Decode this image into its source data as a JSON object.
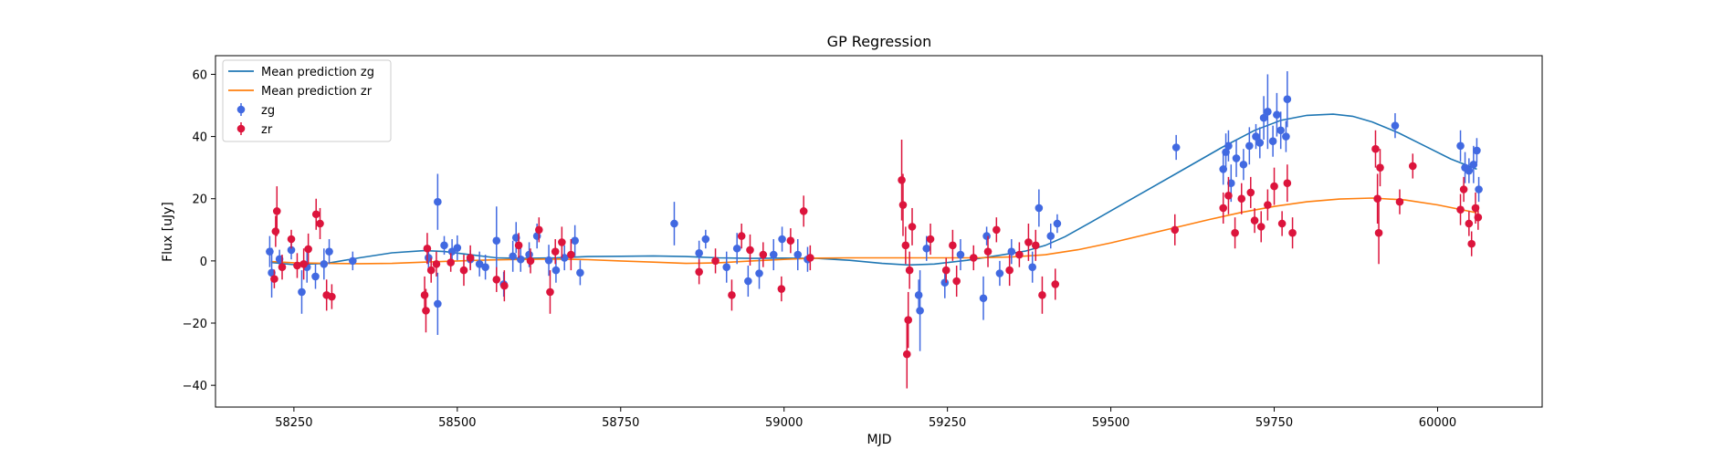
{
  "chart_data": {
    "type": "scatter",
    "title": "GP Regression",
    "xlabel": "MJD",
    "ylabel": "Flux [uJy]",
    "xlim": [
      58130,
      60160
    ],
    "ylim": [
      -47,
      66
    ],
    "xticks": [
      58250,
      58500,
      58750,
      59000,
      59250,
      59500,
      59750,
      60000
    ],
    "yticks": [
      -40,
      -20,
      0,
      20,
      40,
      60
    ],
    "grid": false,
    "legend_position": "top-left",
    "lines": [
      {
        "name": "Mean prediction zg",
        "color": "#1f77b4",
        "x": [
          58215,
          58250,
          58300,
          58350,
          58400,
          58450,
          58480,
          58520,
          58560,
          58600,
          58650,
          58700,
          58750,
          58800,
          58850,
          58900,
          58950,
          59000,
          59050,
          59100,
          59150,
          59190,
          59230,
          59280,
          59330,
          59370,
          59400,
          59430,
          59470,
          59520,
          59570,
          59620,
          59670,
          59720,
          59760,
          59800,
          59840,
          59870,
          59900,
          59940,
          59980,
          60020,
          60060
        ],
        "y": [
          -0.5,
          -1.2,
          -0.8,
          1.0,
          2.6,
          3.3,
          3.0,
          2.0,
          1.0,
          0.8,
          1.0,
          1.4,
          1.5,
          1.6,
          1.4,
          1.0,
          0.8,
          0.9,
          0.8,
          0.2,
          -0.8,
          -1.3,
          -1.0,
          0.2,
          1.8,
          3.2,
          5.0,
          7.8,
          12.5,
          18.5,
          24.5,
          30.5,
          36.5,
          42.0,
          45.2,
          46.8,
          47.2,
          46.5,
          44.7,
          41.2,
          37.0,
          32.8,
          29.5
        ]
      },
      {
        "name": "Mean prediction zr",
        "color": "#ff7f0e",
        "x": [
          58215,
          58250,
          58300,
          58350,
          58400,
          58450,
          58500,
          58550,
          58600,
          58650,
          58700,
          58750,
          58800,
          58850,
          58900,
          58950,
          59000,
          59050,
          59100,
          59150,
          59200,
          59250,
          59300,
          59350,
          59400,
          59450,
          59500,
          59550,
          59600,
          59650,
          59700,
          59750,
          59800,
          59850,
          59900,
          59950,
          60000,
          60060
        ],
        "y": [
          -0.2,
          -0.6,
          -0.8,
          -0.9,
          -0.8,
          -0.4,
          0.0,
          0.3,
          0.5,
          0.6,
          0.4,
          0.0,
          -0.4,
          -0.8,
          -0.6,
          0.0,
          0.5,
          0.9,
          1.0,
          1.0,
          1.0,
          1.0,
          1.0,
          1.3,
          2.0,
          3.6,
          5.8,
          8.3,
          10.8,
          13.3,
          15.6,
          17.5,
          19.0,
          19.9,
          20.2,
          19.6,
          18.0,
          15.5
        ]
      }
    ],
    "series": [
      {
        "name": "zg",
        "color": "#4169e1",
        "points": [
          [
            58213,
            3.0,
            5
          ],
          [
            58216,
            -3.8,
            8
          ],
          [
            58228,
            0.6,
            3
          ],
          [
            58246,
            3.5,
            3
          ],
          [
            58262,
            -10.0,
            7
          ],
          [
            58270,
            -2.0,
            5
          ],
          [
            58283,
            -5.0,
            4
          ],
          [
            58296,
            -1.0,
            5
          ],
          [
            58304,
            3.0,
            4
          ],
          [
            58340,
            0.0,
            3
          ],
          [
            58456,
            1.0,
            4
          ],
          [
            58470,
            19.0,
            9
          ],
          [
            58470,
            -13.8,
            10
          ],
          [
            58480,
            5.0,
            3
          ],
          [
            58492,
            3.0,
            4
          ],
          [
            58500,
            4.2,
            4
          ],
          [
            58520,
            0.5,
            3
          ],
          [
            58534,
            -1.0,
            4
          ],
          [
            58543,
            -2.0,
            4
          ],
          [
            58560,
            6.5,
            11
          ],
          [
            58571,
            -7.5,
            4
          ],
          [
            58585,
            1.5,
            5
          ],
          [
            58590,
            7.5,
            5
          ],
          [
            58597,
            0.5,
            4
          ],
          [
            58610,
            2.0,
            4
          ],
          [
            58622,
            8.0,
            4
          ],
          [
            58640,
            0.2,
            5
          ],
          [
            58651,
            -3.0,
            4
          ],
          [
            58664,
            1.0,
            4
          ],
          [
            58680,
            6.5,
            5
          ],
          [
            58688,
            -3.8,
            4
          ],
          [
            58832,
            12.0,
            7
          ],
          [
            58870,
            2.5,
            4
          ],
          [
            58880,
            7.0,
            3
          ],
          [
            58912,
            -2.0,
            5
          ],
          [
            58928,
            4.0,
            5
          ],
          [
            58945,
            -6.5,
            5
          ],
          [
            58962,
            -4.0,
            5
          ],
          [
            58984,
            2.0,
            5
          ],
          [
            58997,
            7.0,
            4
          ],
          [
            59021,
            2.0,
            5
          ],
          [
            59036,
            0.5,
            4
          ],
          [
            59206,
            -11.0,
            5
          ],
          [
            59208,
            -16.0,
            13
          ],
          [
            59218,
            4.0,
            4
          ],
          [
            59246,
            -7.0,
            5
          ],
          [
            59270,
            2.0,
            5
          ],
          [
            59305,
            -12.0,
            7
          ],
          [
            59310,
            8.0,
            3
          ],
          [
            59330,
            -4.0,
            4
          ],
          [
            59348,
            3.0,
            4
          ],
          [
            59380,
            -2.0,
            5
          ],
          [
            59390,
            17.0,
            6
          ],
          [
            59408,
            8.0,
            4
          ],
          [
            59418,
            12.0,
            3
          ],
          [
            59600,
            36.5,
            4
          ],
          [
            59672,
            29.5,
            5
          ],
          [
            59676,
            35.0,
            6
          ],
          [
            59680,
            37.0,
            5
          ],
          [
            59684,
            25.0,
            6
          ],
          [
            59692,
            33.0,
            6
          ],
          [
            59703,
            31.0,
            5
          ],
          [
            59712,
            37.0,
            6
          ],
          [
            59722,
            40.0,
            4
          ],
          [
            59728,
            38.0,
            5
          ],
          [
            59734,
            46.0,
            7
          ],
          [
            59740,
            48.0,
            12
          ],
          [
            59748,
            38.5,
            5
          ],
          [
            59754,
            47.0,
            7
          ],
          [
            59760,
            42.0,
            6
          ],
          [
            59768,
            40.0,
            5
          ],
          [
            59770,
            52.0,
            9
          ],
          [
            59935,
            43.5,
            4
          ],
          [
            60035,
            37.0,
            5
          ],
          [
            60042,
            30.0,
            5
          ],
          [
            60048,
            29.0,
            4
          ],
          [
            60055,
            31.0,
            6
          ],
          [
            60060,
            35.5,
            4
          ],
          [
            60063,
            23.0,
            4
          ]
        ]
      },
      {
        "name": "zr",
        "color": "#dc143c",
        "points": [
          [
            58220,
            -5.8,
            3
          ],
          [
            58222,
            9.5,
            5
          ],
          [
            58224,
            16.0,
            8
          ],
          [
            58232,
            -2.0,
            4
          ],
          [
            58246,
            7.0,
            3
          ],
          [
            58255,
            -1.5,
            4
          ],
          [
            58265,
            -1.0,
            5
          ],
          [
            58272,
            3.8,
            5
          ],
          [
            58284,
            15.0,
            5
          ],
          [
            58290,
            12.0,
            5
          ],
          [
            58300,
            -11.0,
            5
          ],
          [
            58308,
            -11.5,
            4
          ],
          [
            58450,
            -11.0,
            6
          ],
          [
            58452,
            -16.0,
            7
          ],
          [
            58454,
            4.0,
            5
          ],
          [
            58460,
            -3.0,
            4
          ],
          [
            58468,
            -1.0,
            4
          ],
          [
            58490,
            -0.5,
            3
          ],
          [
            58510,
            -3.0,
            5
          ],
          [
            58520,
            1.0,
            4
          ],
          [
            58560,
            -6.0,
            4
          ],
          [
            58572,
            -8.0,
            5
          ],
          [
            58594,
            5.0,
            4
          ],
          [
            58612,
            0.0,
            4
          ],
          [
            58625,
            10.0,
            4
          ],
          [
            58642,
            -10.0,
            7
          ],
          [
            58650,
            3.0,
            4
          ],
          [
            58660,
            6.0,
            5
          ],
          [
            58674,
            2.0,
            5
          ],
          [
            58870,
            -3.5,
            4
          ],
          [
            58895,
            0.0,
            4
          ],
          [
            58920,
            -11.0,
            5
          ],
          [
            58935,
            8.0,
            4
          ],
          [
            58948,
            3.5,
            5
          ],
          [
            58968,
            2.0,
            4
          ],
          [
            58996,
            -9.0,
            4
          ],
          [
            59010,
            6.5,
            4
          ],
          [
            59030,
            16.0,
            5
          ],
          [
            59040,
            1.0,
            4
          ],
          [
            59180,
            26.0,
            13
          ],
          [
            59182,
            18.0,
            10
          ],
          [
            59186,
            5.0,
            6
          ],
          [
            59188,
            -30.0,
            11
          ],
          [
            59190,
            -19.0,
            9
          ],
          [
            59192,
            -3.0,
            6
          ],
          [
            59196,
            11.0,
            6
          ],
          [
            59224,
            7.0,
            5
          ],
          [
            59248,
            -3.0,
            4
          ],
          [
            59258,
            5.0,
            5
          ],
          [
            59264,
            -6.5,
            5
          ],
          [
            59290,
            1.0,
            4
          ],
          [
            59312,
            3.0,
            5
          ],
          [
            59325,
            10.0,
            4
          ],
          [
            59345,
            -3.0,
            5
          ],
          [
            59360,
            2.0,
            4
          ],
          [
            59374,
            6.0,
            6
          ],
          [
            59385,
            5.0,
            5
          ],
          [
            59395,
            -11.0,
            6
          ],
          [
            59415,
            -7.5,
            5
          ],
          [
            59598,
            10.0,
            5
          ],
          [
            59672,
            17.0,
            5
          ],
          [
            59680,
            21.0,
            6
          ],
          [
            59690,
            9.0,
            5
          ],
          [
            59700,
            20.0,
            5
          ],
          [
            59714,
            22.0,
            5
          ],
          [
            59720,
            13.0,
            4
          ],
          [
            59730,
            11.0,
            5
          ],
          [
            59740,
            18.0,
            5
          ],
          [
            59750,
            24.0,
            6
          ],
          [
            59762,
            12.0,
            4
          ],
          [
            59770,
            25.0,
            6
          ],
          [
            59778,
            9.0,
            5
          ],
          [
            59905,
            36.0,
            6
          ],
          [
            59908,
            20.0,
            8
          ],
          [
            59910,
            9.0,
            10
          ],
          [
            59912,
            30.0,
            6
          ],
          [
            59942,
            19.0,
            4
          ],
          [
            59962,
            30.5,
            4
          ],
          [
            60035,
            16.5,
            5
          ],
          [
            60040,
            23.0,
            4
          ],
          [
            60048,
            12.0,
            4
          ],
          [
            60052,
            5.5,
            4
          ],
          [
            60058,
            17.0,
            5
          ],
          [
            60062,
            14.0,
            4
          ]
        ]
      }
    ]
  }
}
